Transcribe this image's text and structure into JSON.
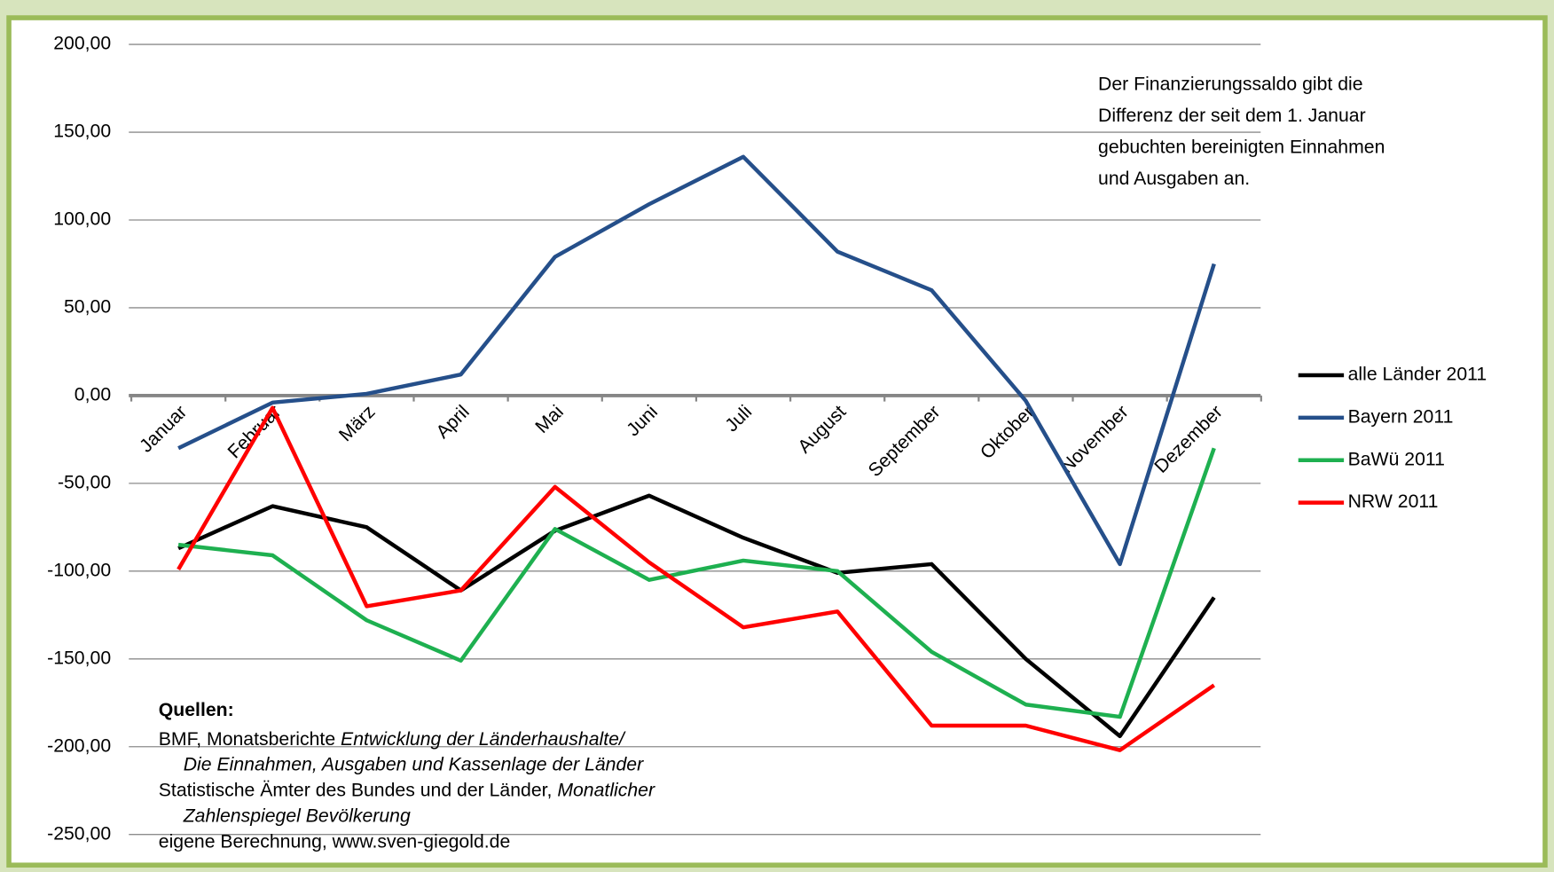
{
  "chart_data": {
    "type": "line",
    "categories": [
      "Januar",
      "Februar",
      "März",
      "April",
      "Mai",
      "Juni",
      "Juli",
      "August",
      "September",
      "Oktober",
      "November",
      "Dezember"
    ],
    "series": [
      {
        "name": "alle Länder 2011",
        "color": "#000000",
        "values": [
          -87,
          -63,
          -75,
          -111,
          -77,
          -57,
          -81,
          -101,
          -96,
          -150,
          -194,
          -115
        ]
      },
      {
        "name": "Bayern 2011",
        "color": "#254f8a",
        "values": [
          -30,
          -4,
          1,
          12,
          79,
          109,
          136,
          82,
          60,
          -3,
          -96,
          75
        ]
      },
      {
        "name": "BaWü 2011",
        "color": "#1eb050",
        "values": [
          -85,
          -91,
          -128,
          -151,
          -76,
          -105,
          -94,
          -100,
          -146,
          -176,
          -183,
          -30
        ]
      },
      {
        "name": "NRW 2011",
        "color": "#ff0000",
        "values": [
          -99,
          -7,
          -120,
          -111,
          -52,
          -95,
          -132,
          -123,
          -188,
          -188,
          -202,
          -165
        ]
      }
    ],
    "ylim": [
      -250,
      200
    ],
    "yticks": [
      {
        "value": -250,
        "label": "-250,00"
      },
      {
        "value": -200,
        "label": "-200,00"
      },
      {
        "value": -150,
        "label": "-150,00"
      },
      {
        "value": -100,
        "label": "-100,00"
      },
      {
        "value": -50,
        "label": "-50,00"
      },
      {
        "value": 0,
        "label": "0,00"
      },
      {
        "value": 50,
        "label": "50,00"
      },
      {
        "value": 100,
        "label": "100,00"
      },
      {
        "value": 150,
        "label": "150,00"
      },
      {
        "value": 200,
        "label": "200,00"
      }
    ],
    "grid": true,
    "legend": "right",
    "note": [
      "Der Finanzierungssaldo gibt die",
      "Differenz der seit dem 1. Januar",
      "gebuchten bereinigten Einnahmen",
      "und Ausgaben an."
    ],
    "sources": {
      "title": "Quellen:",
      "lines": [
        [
          {
            "text": "BMF,  Monatsberichte ",
            "italic": false
          },
          {
            "text": "Entwicklung der Länderhaushalte/",
            "italic": true
          }
        ],
        [
          {
            "text": "Die Einnahmen, Ausgaben und Kassenlage der Länder",
            "italic": true
          }
        ],
        [
          {
            "text": "Statistische Ämter des Bundes und der Länder, ",
            "italic": false
          },
          {
            "text": "Monatlicher",
            "italic": true
          }
        ],
        [
          {
            "text": "Zahlenspiegel Bevölkerung",
            "italic": true
          }
        ],
        [
          {
            "text": "eigene Berechnung, www.sven-giegold.de",
            "italic": false
          }
        ]
      ]
    }
  }
}
